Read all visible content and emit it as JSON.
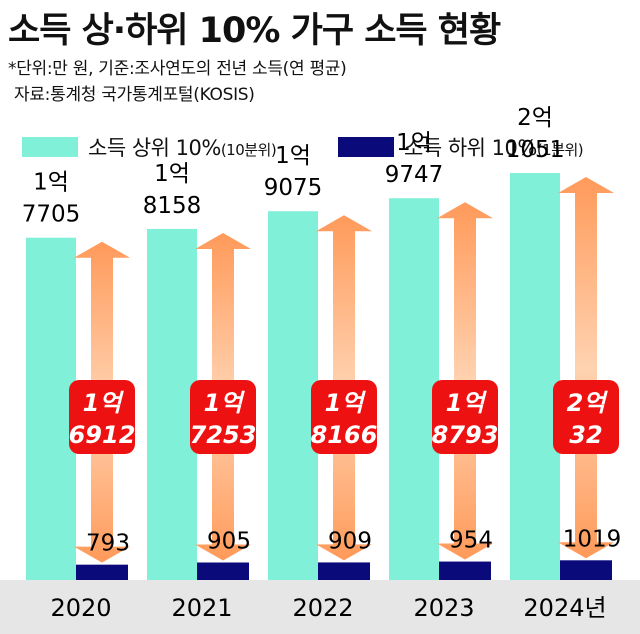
{
  "title": "소득 상·하위 10% 가구 소득 현황",
  "notes": [
    "*단위:만 원, 기준:조사연도의 전년 소득(연 평균)",
    "자료:통계청 국가통계포털(KOSIS)"
  ],
  "legend": [
    {
      "label": "소득 상위 10%",
      "sub": "(10분위)",
      "color": "#80f0d8"
    },
    {
      "label": "소득 하위 10%",
      "sub": "(1분위)",
      "color": "#0a0a7a"
    }
  ],
  "colors": {
    "top": "#80f0d8",
    "bottom": "#0a0a7a",
    "gap_box": "#ee1111",
    "arrow": "#ff9a5a",
    "baseline_band": "#e6e6e6"
  },
  "chart_data": {
    "type": "bar",
    "categories": [
      "2020",
      "2021",
      "2022",
      "2023",
      "2024년"
    ],
    "series": [
      {
        "name": "소득 상위 10%(10분위)",
        "values": [
          17705,
          18158,
          19075,
          19747,
          21051
        ],
        "labels": [
          [
            "1억",
            "7705"
          ],
          [
            "1억",
            "8158"
          ],
          [
            "1억",
            "9075"
          ],
          [
            "1억",
            "9747"
          ],
          [
            "2억",
            "1051"
          ]
        ]
      },
      {
        "name": "소득 하위 10%(1분위)",
        "values": [
          793,
          905,
          909,
          954,
          1019
        ],
        "labels": [
          [
            "793"
          ],
          [
            "905"
          ],
          [
            "909"
          ],
          [
            "954"
          ],
          [
            "1019"
          ]
        ]
      }
    ],
    "gap": {
      "values": [
        16912,
        17253,
        18166,
        18793,
        20032
      ],
      "labels": [
        [
          "1억",
          "6912"
        ],
        [
          "1억",
          "7253"
        ],
        [
          "1억",
          "8166"
        ],
        [
          "1억",
          "8793"
        ],
        [
          "2억",
          "32"
        ]
      ]
    },
    "ylim": [
      0,
      30000
    ],
    "xlabel": "",
    "ylabel": ""
  }
}
